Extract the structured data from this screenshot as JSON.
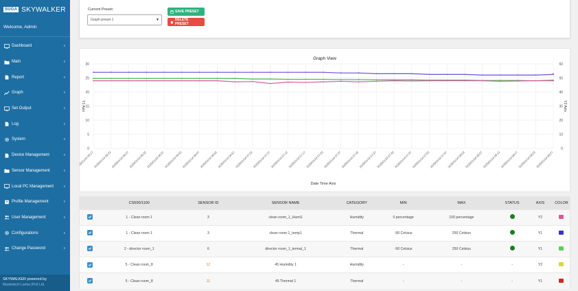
{
  "app": {
    "logo_text": "SUGA",
    "brand_name": "SKYWALKER",
    "welcome": "Welcome, Admin"
  },
  "sidebar": {
    "items": [
      {
        "label": "Dashboard",
        "icon": "monitor-icon",
        "chevron": "›"
      },
      {
        "label": "Main",
        "icon": "folder-icon",
        "chevron": "›"
      },
      {
        "label": "Report",
        "icon": "file-icon",
        "chevron": "›"
      },
      {
        "label": "Graph",
        "icon": "chart-icon",
        "chevron": "›"
      },
      {
        "label": "Set Output",
        "icon": "monitor-icon",
        "chevron": "›"
      },
      {
        "label": "Log",
        "icon": "file-icon",
        "chevron": "›"
      },
      {
        "label": "System",
        "icon": "gear-icon",
        "chevron": "›"
      },
      {
        "label": "Device Management",
        "icon": "file-icon",
        "chevron": "›"
      },
      {
        "label": "Sensor Management",
        "icon": "folder-icon",
        "chevron": "›"
      },
      {
        "label": "Local PC Management",
        "icon": "monitor-icon",
        "chevron": "›"
      },
      {
        "label": "Profile Management",
        "icon": "profile-icon",
        "chevron": "›"
      },
      {
        "label": "User Management",
        "icon": "users-icon",
        "chevron": "›"
      },
      {
        "label": "Configurations",
        "icon": "gear-icon",
        "chevron": "›"
      },
      {
        "label": "Change Password",
        "icon": "users-icon",
        "chevron": "›"
      }
    ],
    "footer_line1": "SKYWALKER powered by",
    "footer_line2": "Mastertech Lanka (Pvt) Ltd."
  },
  "preset": {
    "label": "Current Preset:",
    "selected": "Graph preset 1",
    "save_label": "SAVE PRESET",
    "delete_label": "DELETE PRESET"
  },
  "colors": {
    "sidebar": "#1d6ea3",
    "save": "#2fb380",
    "delete": "#e74c3c",
    "series_purple": "#6a4fe0",
    "series_green": "#3fb84a",
    "series_pink": "#d85aa0",
    "series_red": "#d9534f"
  },
  "chart_data": {
    "type": "line",
    "title": "Graph View",
    "xlabel": "Date Time Axis",
    "ylabel_left": "Y1 Axis",
    "ylabel_right": "Y2 Axis",
    "y1_ticks": [
      "0",
      "5",
      "10",
      "15",
      "20",
      "25",
      "30"
    ],
    "y2_ticks": [
      "0",
      "10",
      "20",
      "30",
      "40",
      "50",
      "60"
    ],
    "y1_lim": [
      0,
      30
    ],
    "y2_lim": [
      0,
      60
    ],
    "x_ticks": [
      "2025/01/14 06:17",
      "2025/01/14 06:22",
      "2025/01/14 06:27",
      "2025/01/14 06:32",
      "2025/01/14 06:37",
      "2025/01/14 06:42",
      "2025/01/14 06:47",
      "2025/01/14 06:52",
      "2025/01/14 06:57",
      "2025/01/14 07:02",
      "2025/01/14 07:07",
      "2025/01/14 07:12",
      "2025/01/14 07:17",
      "2025/01/14 07:22",
      "2025/01/14 07:27",
      "2025/01/14 07:32",
      "2025/01/14 07:37",
      "2025/01/14 07:42",
      "2025/01/14 07:47",
      "2025/01/14 07:52",
      "2025/01/14 07:57",
      "2025/01/14 08:02",
      "2025/01/14 08:07",
      "2025/01/14 08:12",
      "2025/01/14 08:17",
      "2025/01/14 08:22",
      "2025/01/14 08:27"
    ],
    "series": [
      {
        "axis": "Y2",
        "color": "#6a4fe0",
        "values": [
          54,
          54,
          54,
          54,
          54,
          54,
          54,
          54,
          54,
          54,
          54,
          54,
          54,
          54,
          53.5,
          53.5,
          53,
          53,
          53,
          52.5,
          52.5,
          52.5,
          52,
          52,
          52,
          52,
          52.5
        ]
      },
      {
        "axis": "Y1",
        "color": "#3fb84a",
        "values": [
          24.8,
          24.8,
          24.8,
          24.8,
          24.8,
          24.8,
          24.8,
          24.8,
          24.8,
          24.6,
          24.6,
          24.5,
          24.5,
          24.5,
          24.4,
          24.4,
          24.3,
          24.3,
          24.3,
          24.2,
          24.2,
          24.2,
          24.1,
          24.1,
          24.1,
          24.0,
          24.2
        ]
      },
      {
        "axis": "Y1",
        "color": "#d85aa0",
        "values": [
          24,
          24,
          24,
          24,
          24,
          24,
          24,
          24,
          23.6,
          23.7,
          23,
          23.5,
          23.4,
          23.6,
          23.8,
          23.6,
          23.8,
          24,
          23.9,
          24,
          24,
          24,
          24,
          23.8,
          23.9,
          24,
          24
        ]
      },
      {
        "axis": "Y2",
        "color": "#d9534f",
        "values": [
          null,
          null,
          null,
          null,
          null,
          null,
          null,
          null,
          null,
          null,
          null,
          null,
          null,
          null,
          null,
          null,
          null,
          null,
          null,
          null,
          null,
          null,
          null,
          null,
          null,
          null,
          53
        ]
      }
    ]
  },
  "table": {
    "headers": [
      "",
      "CS500/1100",
      "SENSOR ID",
      "SENSOR NAME",
      "CATEGORY",
      "MIN",
      "MAX",
      "STATUS",
      "AXIS",
      "COLOR"
    ],
    "rows": [
      {
        "device": "1 - Clean room 1",
        "sensor_id": "3",
        "sensor_name": "clean room_1_Humi1",
        "category": "Humidity",
        "min": "0 percentage",
        "max": "100 percentage",
        "status": "online",
        "axis": "Y2",
        "color": "#e0559a",
        "id_color": ""
      },
      {
        "device": "1 - Clean room 1",
        "sensor_id": "3",
        "sensor_name": "clean room 1_temp1",
        "category": "Thermal",
        "min": "-50 Celsius",
        "max": "250 Celsius",
        "status": "online",
        "axis": "Y1",
        "color": "#3b2fd1",
        "id_color": ""
      },
      {
        "device": "2 - director room_1",
        "sensor_id": "6",
        "sensor_name": "director room_1_termal_1",
        "category": "Thermal",
        "min": "-50 Celsius",
        "max": "250 Celsius",
        "status": "online",
        "axis": "Y1",
        "color": "#56d04f",
        "id_color": ""
      },
      {
        "device": "5 - Clean room_8",
        "sensor_id": "12",
        "sensor_name": "45 Humidity 1",
        "category": "Humidity",
        "min": "-",
        "max": "-",
        "status": "-",
        "axis": "Y2",
        "color": "#d9d93a",
        "id_color": "orange"
      },
      {
        "device": "5 - Clean room_8",
        "sensor_id": "11",
        "sensor_name": "45 Thermal 1",
        "category": "Thermal",
        "min": "-",
        "max": "-",
        "status": "-",
        "axis": "Y1",
        "color": "#e02020",
        "id_color": "orange"
      }
    ]
  }
}
